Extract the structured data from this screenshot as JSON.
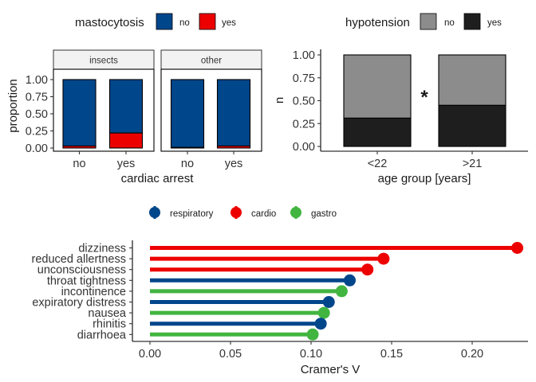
{
  "chart_data": [
    {
      "type": "bar",
      "stacked": true,
      "facets": [
        "insects",
        "other"
      ],
      "categories": [
        "no",
        "yes"
      ],
      "xlabel": "cardiac arrest",
      "ylabel": "proportion",
      "ylim": [
        0,
        1
      ],
      "yticks": [
        "0.00",
        "0.25",
        "0.50",
        "0.75",
        "1.00"
      ],
      "legend": {
        "title": "mastocytosis",
        "position": "top",
        "entries": [
          {
            "label": "no",
            "color": "#00468B"
          },
          {
            "label": "yes",
            "color": "#ED0000"
          }
        ]
      },
      "series": [
        {
          "name": "yes",
          "color": "#ED0000",
          "values_by_facet": {
            "insects": [
              0.03,
              0.22
            ],
            "other": [
              0.01,
              0.03
            ]
          }
        },
        {
          "name": "no",
          "color": "#00468B",
          "values_by_facet": {
            "insects": [
              0.97,
              0.78
            ],
            "other": [
              0.99,
              0.97
            ]
          }
        }
      ]
    },
    {
      "type": "bar",
      "stacked": true,
      "categories": [
        "<22",
        ">21"
      ],
      "xlabel": "age group [years]",
      "ylabel": "n",
      "ylim": [
        0,
        1
      ],
      "yticks": [
        "0.00",
        "0.25",
        "0.50",
        "0.75",
        "1.00"
      ],
      "annotation": "*",
      "legend": {
        "title": "hypotension",
        "position": "top",
        "entries": [
          {
            "label": "no",
            "color": "#8C8C8C"
          },
          {
            "label": "yes",
            "color": "#1E1E1E"
          }
        ]
      },
      "series": [
        {
          "name": "yes",
          "color": "#1E1E1E",
          "values": [
            0.31,
            0.45
          ]
        },
        {
          "name": "no",
          "color": "#8C8C8C",
          "values": [
            0.69,
            0.55
          ]
        }
      ]
    },
    {
      "type": "lollipop",
      "orientation": "horizontal",
      "xlabel": "Cramer's V",
      "xlim": [
        0,
        0.23
      ],
      "xticks": [
        "0.00",
        "0.05",
        "0.10",
        "0.15",
        "0.20"
      ],
      "legend": {
        "position": "top",
        "entries": [
          {
            "label": "respiratory",
            "color": "#00468B"
          },
          {
            "label": "cardio",
            "color": "#ED0000"
          },
          {
            "label": "gastro",
            "color": "#42B540"
          }
        ]
      },
      "items": [
        {
          "label": "dizziness",
          "value": 0.228,
          "group": "cardio"
        },
        {
          "label": "reduced allertness",
          "value": 0.145,
          "group": "cardio"
        },
        {
          "label": "unconsciousness",
          "value": 0.135,
          "group": "cardio"
        },
        {
          "label": "throat tightness",
          "value": 0.124,
          "group": "respiratory"
        },
        {
          "label": "incontinence",
          "value": 0.119,
          "group": "gastro"
        },
        {
          "label": "expiratory distress",
          "value": 0.111,
          "group": "respiratory"
        },
        {
          "label": "nausea",
          "value": 0.108,
          "group": "gastro"
        },
        {
          "label": "rhinitis",
          "value": 0.106,
          "group": "respiratory"
        },
        {
          "label": "diarrhoea",
          "value": 0.101,
          "group": "gastro"
        }
      ]
    }
  ]
}
